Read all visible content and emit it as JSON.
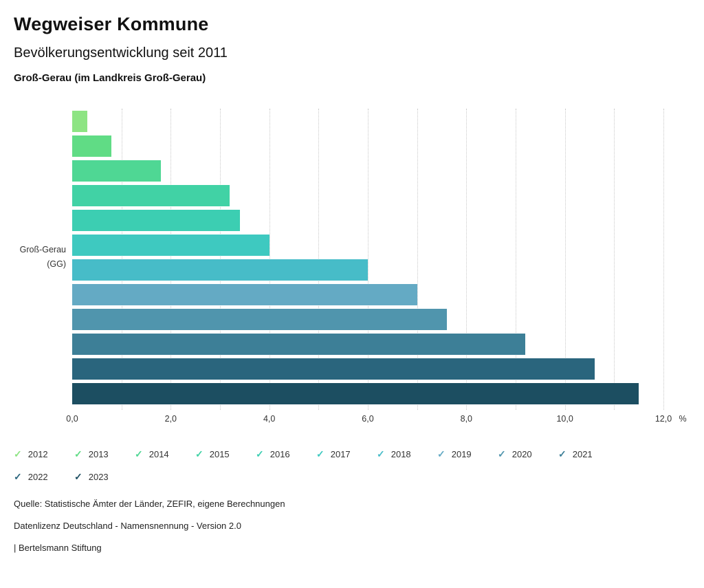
{
  "header": {
    "title": "Wegweiser Kommune",
    "subtitle": "Bevölkerungsentwicklung seit 2011",
    "region": "Groß-Gerau (im Landkreis Groß-Gerau)"
  },
  "chart_data": {
    "type": "bar",
    "orientation": "horizontal",
    "title": "Bevölkerungsentwicklung seit 2011",
    "group_label": [
      "Groß-Gerau",
      "(GG)"
    ],
    "categories": [
      "2012",
      "2013",
      "2014",
      "2015",
      "2016",
      "2017",
      "2018",
      "2019",
      "2020",
      "2021",
      "2022",
      "2023"
    ],
    "values": [
      0.3,
      0.8,
      1.8,
      3.2,
      3.4,
      4.0,
      6.0,
      7.0,
      7.6,
      9.2,
      10.6,
      11.5
    ],
    "unit": "%",
    "colors": [
      "#8de483",
      "#60dc85",
      "#4fd794",
      "#41d2a5",
      "#3cceb2",
      "#3ec9c0",
      "#47bcc8",
      "#64aac4",
      "#5095ad",
      "#3d7f97",
      "#2a657d",
      "#1c4e61"
    ],
    "xlim": [
      0,
      12
    ],
    "x_ticks": [
      {
        "value": 0,
        "label": "0,0"
      },
      {
        "value": 2,
        "label": "2,0"
      },
      {
        "value": 4,
        "label": "4,0"
      },
      {
        "value": 6,
        "label": "6,0"
      },
      {
        "value": 8,
        "label": "8,0"
      },
      {
        "value": 10,
        "label": "10,0"
      },
      {
        "value": 12,
        "label": "12,0"
      }
    ],
    "grid": "dotted-vertical",
    "legend_position": "bottom"
  },
  "legend": {
    "check_icon": "✓",
    "items": [
      {
        "label": "2012",
        "color": "#8de483"
      },
      {
        "label": "2013",
        "color": "#60dc85"
      },
      {
        "label": "2014",
        "color": "#4fd794"
      },
      {
        "label": "2015",
        "color": "#41d2a5"
      },
      {
        "label": "2016",
        "color": "#3cceb2"
      },
      {
        "label": "2017",
        "color": "#3ec9c0"
      },
      {
        "label": "2018",
        "color": "#47bcc8"
      },
      {
        "label": "2019",
        "color": "#64aac4"
      },
      {
        "label": "2020",
        "color": "#5095ad"
      },
      {
        "label": "2021",
        "color": "#3d7f97"
      },
      {
        "label": "2022",
        "color": "#2a657d"
      },
      {
        "label": "2023",
        "color": "#1c4e61"
      }
    ]
  },
  "footer": {
    "source": "Quelle: Statistische Ämter der Länder, ZEFIR, eigene Berechnungen",
    "license": "Datenlizenz Deutschland - Namensnennung - Version 2.0",
    "brand": "| Bertelsmann Stiftung"
  }
}
